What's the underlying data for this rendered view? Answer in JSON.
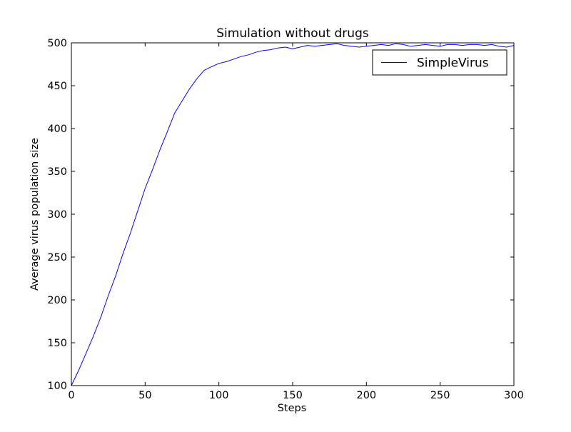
{
  "chart_data": {
    "type": "line",
    "title": "Simulation without drugs",
    "xlabel": "Steps",
    "ylabel": "Average virus population size",
    "xlim": [
      0,
      300
    ],
    "ylim": [
      100,
      500
    ],
    "xticks": [
      0,
      50,
      100,
      150,
      200,
      250,
      300
    ],
    "yticks": [
      100,
      150,
      200,
      250,
      300,
      350,
      400,
      450,
      500
    ],
    "xtick_labels": [
      "0",
      "50",
      "100",
      "150",
      "200",
      "250",
      "300"
    ],
    "ytick_labels": [
      "100",
      "150",
      "200",
      "250",
      "300",
      "350",
      "400",
      "450",
      "500"
    ],
    "grid": false,
    "legend": {
      "position": "top-right",
      "entries": [
        "SimpleVirus"
      ]
    },
    "series": [
      {
        "name": "SimpleVirus",
        "color": "#0000ff",
        "x": [
          0,
          5,
          10,
          15,
          20,
          25,
          30,
          35,
          40,
          45,
          50,
          55,
          60,
          65,
          70,
          75,
          80,
          85,
          90,
          95,
          100,
          105,
          110,
          115,
          120,
          125,
          130,
          135,
          140,
          145,
          150,
          155,
          160,
          165,
          170,
          175,
          180,
          185,
          190,
          195,
          200,
          205,
          210,
          215,
          220,
          225,
          230,
          235,
          240,
          245,
          250,
          255,
          260,
          265,
          270,
          275,
          280,
          285,
          290,
          295,
          300
        ],
        "values": [
          100,
          118,
          138,
          158,
          180,
          205,
          228,
          254,
          278,
          304,
          330,
          352,
          375,
          396,
          418,
          432,
          446,
          458,
          468,
          472,
          476,
          478,
          481,
          484,
          486,
          489,
          491,
          492,
          494,
          495,
          493,
          495,
          497,
          496,
          497,
          498,
          499,
          497,
          496,
          495,
          496,
          497,
          498,
          497,
          499,
          498,
          496,
          497,
          498,
          497,
          496,
          498,
          498,
          497,
          498,
          498,
          497,
          498,
          496,
          495,
          497
        ]
      }
    ]
  }
}
